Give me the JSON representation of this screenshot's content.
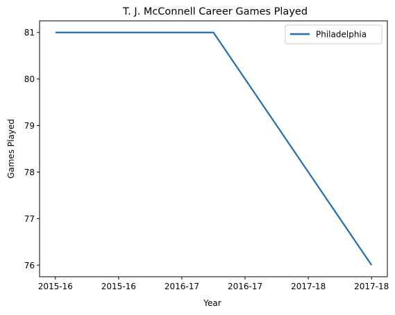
{
  "chart_data": {
    "type": "line",
    "title": "T. J. McConnell Career Games Played",
    "xlabel": "Year",
    "ylabel": "Games Played",
    "x_tick_labels": [
      "2015-16",
      "2015-16",
      "2016-17",
      "2016-17",
      "2017-18",
      "2017-18"
    ],
    "x": [
      0,
      0.5,
      1,
      1.5,
      2,
      2.5
    ],
    "xlim": [
      -0.125,
      2.625
    ],
    "ylim": [
      75.75,
      81.25
    ],
    "y_ticks": [
      76,
      77,
      78,
      79,
      80,
      81
    ],
    "grid": false,
    "legend_position": "top-right",
    "series": [
      {
        "name": "Philadelphia",
        "color": "#1f6db0",
        "x": [
          0,
          1.25,
          2.5
        ],
        "values": [
          81,
          81,
          76
        ]
      }
    ]
  }
}
